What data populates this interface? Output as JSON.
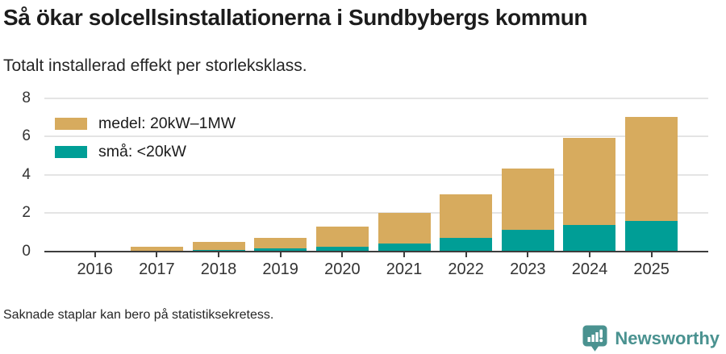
{
  "title": "Så ökar solcellsinstallationerna i Sundbybergs kommun",
  "subtitle": "Totalt installerad effekt per storleksklass.",
  "footnote": "Saknade staplar kan bero på statistiksekretess.",
  "brand": {
    "name": "Newsworthy",
    "color": "#4A9290",
    "icon": "newsworthy-speech-bubble-chart-icon"
  },
  "colors": {
    "medel": "#D7AB5E",
    "sma": "#009E96",
    "gridline": "#E4E4E4",
    "axis": "#3D3D3D",
    "title_text": "#1C1C1C",
    "tick_text": "#333333"
  },
  "chart_data": {
    "type": "bar",
    "stacked": true,
    "title": "Så ökar solcellsinstallationerna i Sundbybergs kommun",
    "subtitle": "Totalt installerad effekt per storleksklass.",
    "categories": [
      "2016",
      "2017",
      "2018",
      "2019",
      "2020",
      "2021",
      "2022",
      "2023",
      "2024",
      "2025"
    ],
    "series": [
      {
        "name": "små: <20kW",
        "color": "#009E96",
        "stack_order": "bottom",
        "values": [
          0,
          0,
          0.05,
          0.15,
          0.25,
          0.4,
          0.7,
          1.1,
          1.35,
          1.6
        ]
      },
      {
        "name": "medel: 20kW–1MW",
        "color": "#D7AB5E",
        "stack_order": "top",
        "values": [
          0,
          0.25,
          0.45,
          0.55,
          1.05,
          1.6,
          2.25,
          3.2,
          4.55,
          5.4
        ]
      }
    ],
    "xlabel": "",
    "ylabel": "",
    "ylim": [
      0,
      8
    ],
    "yticks": [
      0,
      2,
      4,
      6,
      8
    ],
    "grid": true,
    "legend_position": "top-left",
    "legend_order": [
      "medel: 20kW–1MW",
      "små: <20kW"
    ]
  }
}
